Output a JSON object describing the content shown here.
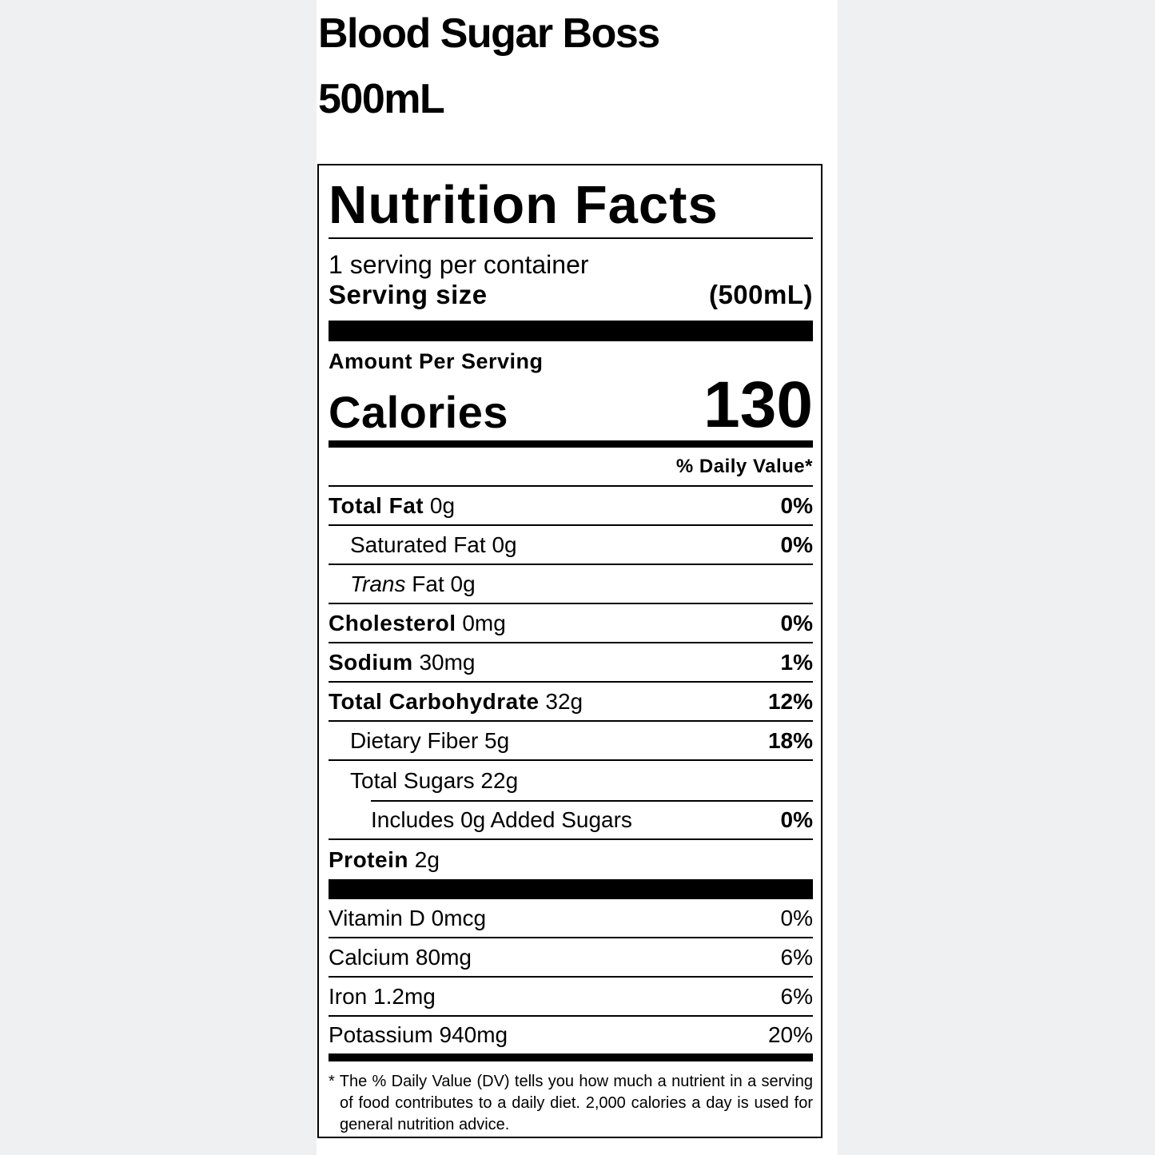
{
  "product": {
    "name": "Blood Sugar Boss",
    "size": "500mL"
  },
  "label": {
    "title": "Nutrition Facts",
    "servings_per_container": "1 serving per container",
    "serving_size_label": "Serving size",
    "serving_size_value": "(500mL)",
    "amount_per_serving": "Amount Per Serving",
    "calories_label": "Calories",
    "calories_value": "130",
    "dv_header": "% Daily Value*",
    "nutrients": [
      {
        "name": "Total Fat",
        "amount": "0g",
        "dv": "0%"
      },
      {
        "name": "Saturated Fat",
        "amount": "0g",
        "dv": "0%"
      },
      {
        "name": "Trans",
        "name_suffix": "Fat",
        "amount": "0g",
        "dv": ""
      },
      {
        "name": "Cholesterol",
        "amount": "0mg",
        "dv": "0%"
      },
      {
        "name": "Sodium",
        "amount": "30mg",
        "dv": "1%"
      },
      {
        "name": "Total Carbohydrate",
        "amount": "32g",
        "dv": "12%"
      },
      {
        "name": "Dietary Fiber",
        "amount": "5g",
        "dv": "18%"
      },
      {
        "name": "Total Sugars",
        "amount": "22g",
        "dv": ""
      },
      {
        "name": "Includes 0g Added Sugars",
        "amount": "",
        "dv": "0%"
      },
      {
        "name": "Protein",
        "amount": "2g",
        "dv": ""
      }
    ],
    "vitamins": [
      {
        "name": "Vitamin D",
        "amount": "0mcg",
        "dv": "0%"
      },
      {
        "name": "Calcium",
        "amount": "80mg",
        "dv": "6%"
      },
      {
        "name": "Iron",
        "amount": "1.2mg",
        "dv": "6%"
      },
      {
        "name": "Potassium",
        "amount": "940mg",
        "dv": "20%"
      }
    ],
    "footnote": "* The % Daily Value (DV) tells you how much a nutrient in a serving of food contributes to a daily diet. 2,000 calories a day is used for general nutrition advice."
  }
}
